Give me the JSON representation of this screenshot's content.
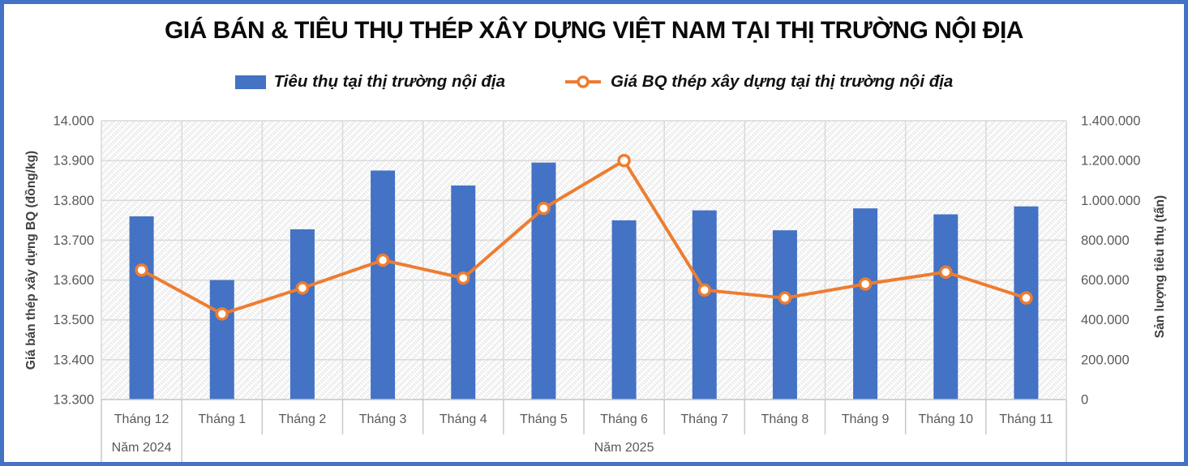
{
  "title": "GIÁ BÁN & TIÊU THỤ THÉP XÂY DỰNG VIỆT NAM TẠI THỊ TRƯỜNG NỘI ĐỊA",
  "legend": [
    {
      "label": "Tiêu thụ tại thị trường nội địa",
      "marker": "bar-swatch",
      "color": "#4472C4"
    },
    {
      "label": "Giá BQ thép xây dựng tại thị trường nội địa",
      "marker": "line-circle",
      "color": "#ED7D31"
    }
  ],
  "chart_data": {
    "type": "bar",
    "subtype": "combo-bar-line",
    "categories": [
      "Tháng 12",
      "Tháng 1",
      "Tháng 2",
      "Tháng 3",
      "Tháng 4",
      "Tháng 5",
      "Tháng 6",
      "Tháng 7",
      "Tháng 8",
      "Tháng 9",
      "Tháng 10",
      "Tháng 11"
    ],
    "year_groups": [
      {
        "label": "Năm 2024",
        "span": 1
      },
      {
        "label": "Năm 2025",
        "span": 11
      }
    ],
    "series": [
      {
        "name": "Tiêu thụ tại thị trường nội địa",
        "type": "bar",
        "axis": "right",
        "values": [
          920000,
          600000,
          855000,
          1150000,
          1075000,
          1190000,
          900000,
          950000,
          850000,
          960000,
          930000,
          970000
        ]
      },
      {
        "name": "Giá BQ thép xây dựng tại thị trường nội địa",
        "type": "line",
        "axis": "left",
        "values": [
          13625,
          13515,
          13580,
          13650,
          13605,
          13780,
          13900,
          13575,
          13555,
          13590,
          13620,
          13555
        ]
      }
    ],
    "left_axis": {
      "title": "Giá bán thép xây dựng BQ (đồng/kg)",
      "min": 13300,
      "max": 14000,
      "step": 100,
      "tick_labels": [
        "14.000",
        "13.900",
        "13.800",
        "13.700",
        "13.600",
        "13.500",
        "13.400",
        "13.300"
      ]
    },
    "right_axis": {
      "title": "Sản lượng tiêu thụ (tấn)",
      "min": 0,
      "max": 1400000,
      "step": 200000,
      "tick_labels": [
        "1.400.000",
        "1.200.000",
        "1.000.000",
        "800.000",
        "600.000",
        "400.000",
        "200.000",
        "0"
      ]
    },
    "grid": true,
    "legend_position": "top"
  },
  "colors": {
    "border": "#4472C4",
    "bar": "#4472C4",
    "line": "#ED7D31",
    "marker_fill": "#FFFFFF",
    "grid": "#D9D9D9",
    "separator": "#C9C9C9",
    "hatch": "#E5E5E5",
    "axis_text": "#595959",
    "axis_title_text": "#404040",
    "title_text": "#0a0a0a"
  }
}
